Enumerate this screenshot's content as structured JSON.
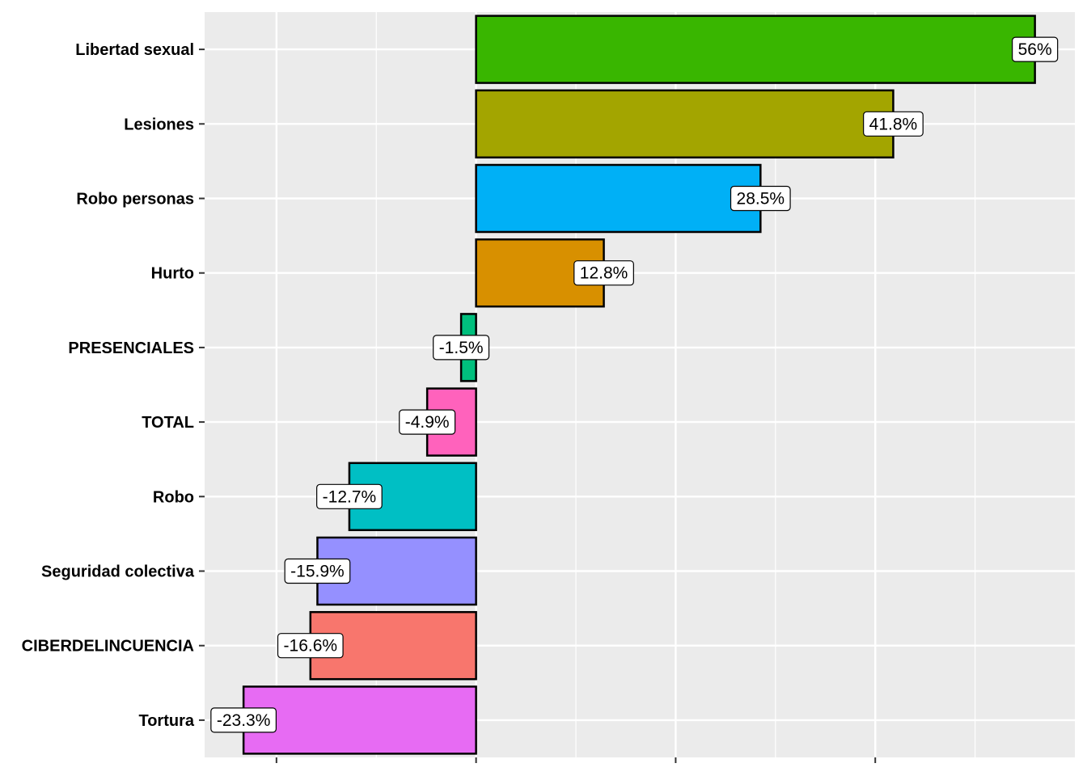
{
  "chart_data": {
    "type": "bar",
    "orientation": "horizontal",
    "title": "",
    "xlabel": "",
    "ylabel": "",
    "xlim": [
      -27.2,
      60
    ],
    "x_major_ticks": [
      -20,
      0,
      20,
      40
    ],
    "x_tick_labels_shown": false,
    "grid": true,
    "legend": "none",
    "categories": [
      "Libertad sexual",
      "Lesiones",
      "Robo personas",
      "Hurto",
      "PRESENCIALES",
      "TOTAL",
      "Robo",
      "Seguridad colectiva",
      "CIBERDELINCUENCIA",
      "Tortura"
    ],
    "values": [
      56,
      41.8,
      28.5,
      12.8,
      -1.5,
      -4.9,
      -12.7,
      -15.9,
      -16.6,
      -23.3
    ],
    "data_labels": [
      "56%",
      "41.8%",
      "28.5%",
      "12.8%",
      "-1.5%",
      "-4.9%",
      "-12.7%",
      "-15.9%",
      "-16.6%",
      "-23.3%"
    ],
    "colors": [
      "#39B600",
      "#A3A500",
      "#00B0F6",
      "#D89000",
      "#00BF7D",
      "#FF62BC",
      "#00BFC4",
      "#9590FF",
      "#F8766D",
      "#E76BF3"
    ],
    "panel_background": "#EBEBEB"
  }
}
